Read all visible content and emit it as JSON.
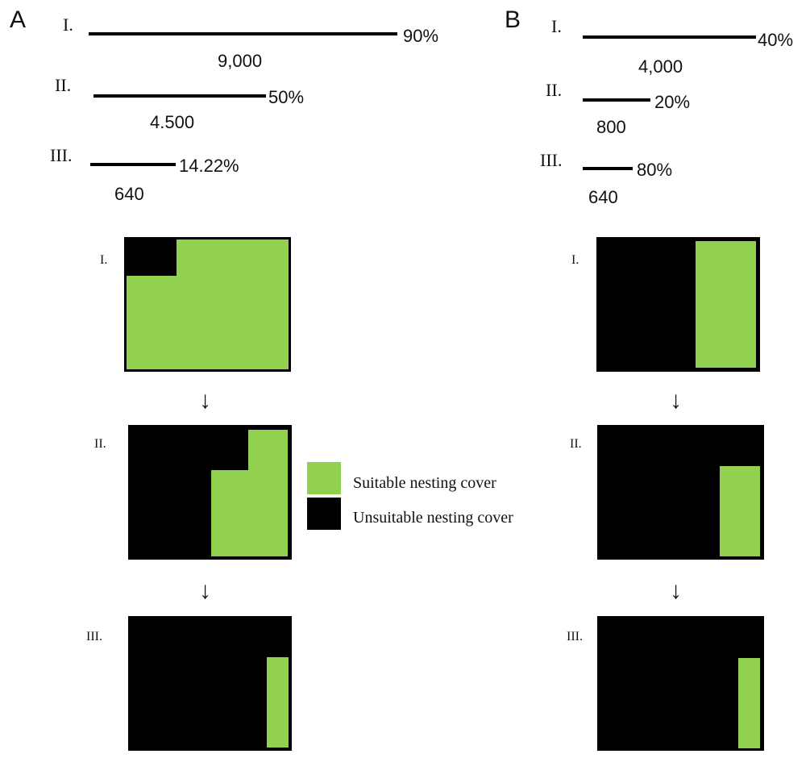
{
  "panels": [
    {
      "letter": "A",
      "bars": [
        {
          "roman": "I.",
          "percent_label": "90%",
          "value_label": "9,000",
          "value": 9000
        },
        {
          "roman": "II.",
          "percent_label": "50%",
          "value_label": "4.500",
          "value": 4500
        },
        {
          "roman": "III.",
          "percent_label": "14.22%",
          "value_label": "640",
          "value": 640
        }
      ],
      "boxes": [
        {
          "roman": "I."
        },
        {
          "roman": "II."
        },
        {
          "roman": "III."
        }
      ]
    },
    {
      "letter": "B",
      "bars": [
        {
          "roman": "I.",
          "percent_label": "40%",
          "value_label": "4,000",
          "value": 4000
        },
        {
          "roman": "II.",
          "percent_label": "20%",
          "value_label": "800",
          "value": 800
        },
        {
          "roman": "III.",
          "percent_label": "80%",
          "value_label": "640",
          "value": 640
        }
      ],
      "boxes": [
        {
          "roman": "I."
        },
        {
          "roman": "II."
        },
        {
          "roman": "III."
        }
      ]
    }
  ],
  "arrow_symbol": "↓",
  "legend": {
    "suitable": {
      "label": "Suitable nesting cover",
      "color": "#92d050"
    },
    "unsuitable": {
      "label": "Unsuitable nesting cover",
      "color": "#000000"
    }
  }
}
